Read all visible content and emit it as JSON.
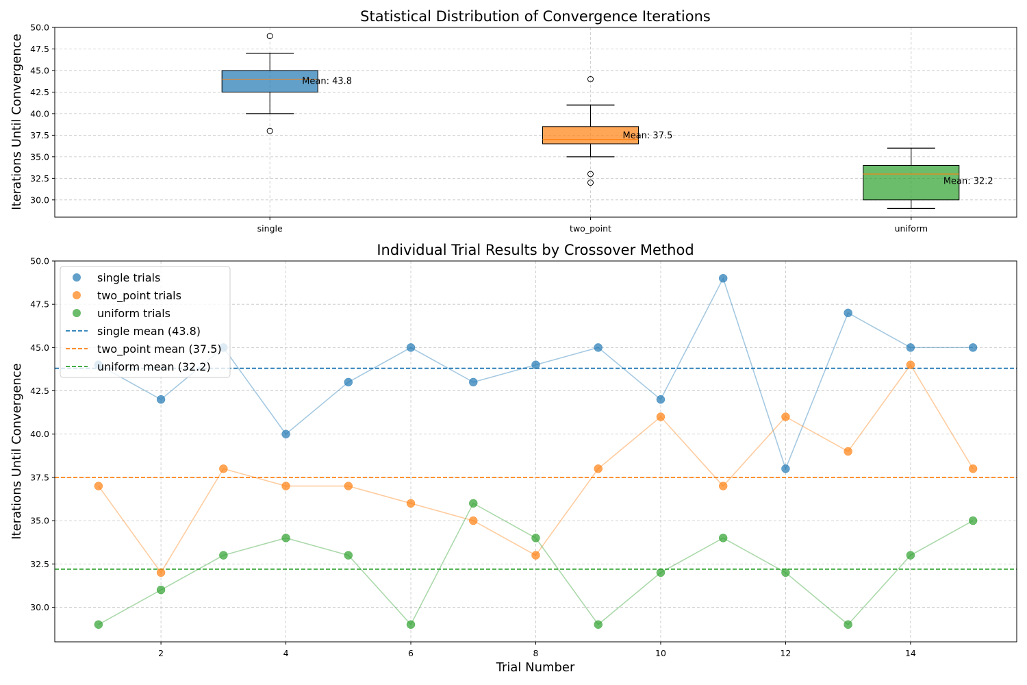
{
  "chart_data": [
    {
      "type": "box",
      "title": "Statistical Distribution of Convergence Iterations",
      "ylabel": "Iterations Until Convergence",
      "xlabel": "",
      "categories": [
        "single",
        "two_point",
        "uniform"
      ],
      "ylim": [
        28.0,
        50.0
      ],
      "yticks": [
        30.0,
        32.5,
        35.0,
        37.5,
        40.0,
        42.5,
        45.0,
        47.5,
        50.0
      ],
      "ytick_labels": [
        "30.0",
        "32.5",
        "35.0",
        "37.5",
        "40.0",
        "42.5",
        "45.0",
        "47.5",
        "50.0"
      ],
      "grid": true,
      "boxes": [
        {
          "name": "single",
          "q1": 42.5,
          "median": 44,
          "q3": 45,
          "whisker_low": 40,
          "whisker_high": 47,
          "outliers": [
            38,
            49
          ],
          "mean": 43.8,
          "mean_label": "Mean: 43.8",
          "color": "#1f77b4"
        },
        {
          "name": "two_point",
          "q1": 36.5,
          "median": 37,
          "q3": 38.5,
          "whisker_low": 35,
          "whisker_high": 41,
          "outliers": [
            32,
            33,
            44
          ],
          "mean": 37.5,
          "mean_label": "Mean: 37.5",
          "color": "#ff7f0e"
        },
        {
          "name": "uniform",
          "q1": 30,
          "median": 33,
          "q3": 34,
          "whisker_low": 29,
          "whisker_high": 36,
          "outliers": [],
          "mean": 32.2,
          "mean_label": "Mean: 32.2",
          "color": "#2ca02c"
        }
      ],
      "median_color": "#ff7f0e"
    },
    {
      "type": "scatter",
      "title": "Individual Trial Results by Crossover Method",
      "xlabel": "Trial Number",
      "ylabel": "Iterations Until Convergence",
      "xlim": [
        0.3,
        15.7
      ],
      "ylim": [
        28.0,
        50.0
      ],
      "xticks": [
        2,
        4,
        6,
        8,
        10,
        12,
        14
      ],
      "xtick_labels": [
        "2",
        "4",
        "6",
        "8",
        "10",
        "12",
        "14"
      ],
      "yticks": [
        30.0,
        32.5,
        35.0,
        37.5,
        40.0,
        42.5,
        45.0,
        47.5,
        50.0
      ],
      "ytick_labels": [
        "30.0",
        "32.5",
        "35.0",
        "37.5",
        "40.0",
        "42.5",
        "45.0",
        "47.5",
        "50.0"
      ],
      "grid": true,
      "legend_position": "upper-left",
      "x": [
        1,
        2,
        3,
        4,
        5,
        6,
        7,
        8,
        9,
        10,
        11,
        12,
        13,
        14,
        15
      ],
      "series": [
        {
          "name": "single trials",
          "color": "#1f77b4",
          "values": [
            44,
            42,
            45,
            40,
            43,
            45,
            43,
            44,
            45,
            42,
            49,
            38,
            47,
            45,
            45
          ]
        },
        {
          "name": "two_point trials",
          "color": "#ff7f0e",
          "values": [
            37,
            32,
            38,
            37,
            37,
            36,
            35,
            33,
            38,
            41,
            37,
            41,
            39,
            44,
            38
          ]
        },
        {
          "name": "uniform trials",
          "color": "#2ca02c",
          "values": [
            29,
            31,
            33,
            34,
            33,
            29,
            36,
            34,
            29,
            32,
            34,
            32,
            29,
            33,
            35
          ]
        }
      ],
      "mean_lines": [
        {
          "name": "single mean (43.8)",
          "value": 43.8,
          "color": "#1f77b4"
        },
        {
          "name": "two_point mean (37.5)",
          "value": 37.5,
          "color": "#ff7f0e"
        },
        {
          "name": "uniform mean (32.2)",
          "value": 32.2,
          "color": "#2ca02c"
        }
      ]
    }
  ]
}
